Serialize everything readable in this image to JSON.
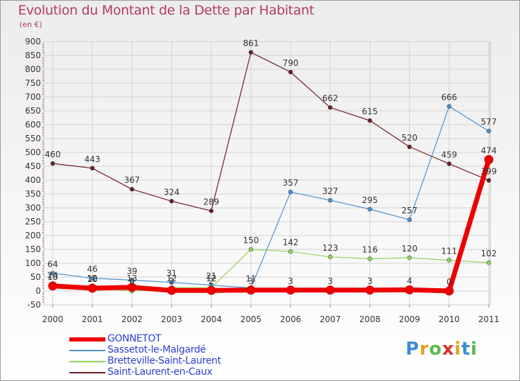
{
  "header": {
    "title": "Evolution du Montant de la Dette par Habitant",
    "subtitle": "(en €)"
  },
  "brand": {
    "text": "Proxiti",
    "colors": [
      "#3a8fd6",
      "#e8a020",
      "#5ab84a",
      "#d6342c",
      "#e8a020",
      "#3a8fd6",
      "#5ab84a"
    ]
  },
  "chart_data": {
    "type": "line",
    "title": "Evolution du Montant de la Dette par Habitant",
    "subtitle": "(en €)",
    "xlabel": "",
    "ylabel": "",
    "categories": [
      "2000",
      "2001",
      "2002",
      "2003",
      "2004",
      "2005",
      "2006",
      "2007",
      "2008",
      "2009",
      "2010",
      "2011"
    ],
    "ylim": [
      -50,
      900
    ],
    "yticks": [
      -50,
      0,
      50,
      100,
      150,
      200,
      250,
      300,
      350,
      400,
      450,
      500,
      550,
      600,
      650,
      700,
      750,
      800,
      850,
      900
    ],
    "grid": true,
    "legend_position": "bottom-left",
    "series": [
      {
        "name": "GONNETOT",
        "color": "#ee0000",
        "values": [
          18,
          10,
          13,
          2,
          2,
          3,
          3,
          3,
          3,
          4,
          0,
          474
        ]
      },
      {
        "name": "Sassetot-le-Malgardé",
        "color": "#4a90d0",
        "values": [
          64,
          46,
          39,
          31,
          21,
          11,
          357,
          327,
          295,
          257,
          666,
          577
        ]
      },
      {
        "name": "Bretteville-Saint-Laurent",
        "color": "#8fd45a",
        "values": [
          24,
          12,
          0,
          12,
          12,
          150,
          142,
          123,
          116,
          120,
          111,
          102
        ]
      },
      {
        "name": "Saint-Laurent-en-Caux",
        "color": "#6b1c22",
        "values": [
          460,
          443,
          367,
          324,
          289,
          861,
          790,
          662,
          615,
          520,
          459,
          399
        ]
      }
    ]
  }
}
